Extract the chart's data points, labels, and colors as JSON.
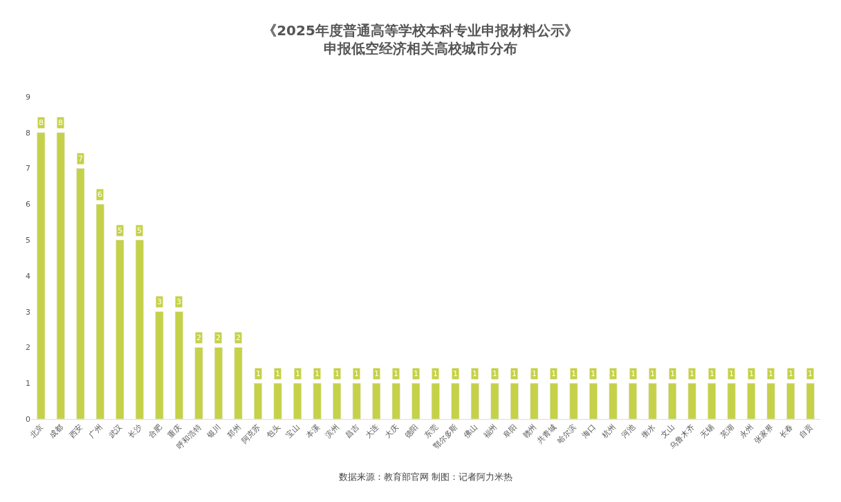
{
  "chart_data": {
    "type": "bar",
    "title": "《2025年度普通高等学校本科专业申报材料公示》",
    "subtitle": "申报低空经济相关高校城市分布",
    "categories": [
      "北京",
      "成都",
      "西安",
      "广州",
      "武汉",
      "长沙",
      "合肥",
      "重庆",
      "呼和浩特",
      "银川",
      "郑州",
      "阿克苏",
      "包头",
      "宝山",
      "本溪",
      "滨州",
      "昌吉",
      "大连",
      "大庆",
      "德阳",
      "东莞",
      "鄂尔多斯",
      "佛山",
      "福州",
      "阜阳",
      "赣州",
      "共青城",
      "哈尔滨",
      "海口",
      "杭州",
      "河池",
      "衡水",
      "文山",
      "乌鲁木齐",
      "无锡",
      "芜湖",
      "永州",
      "张家界",
      "长春",
      "自贡"
    ],
    "values": [
      8,
      8,
      7,
      6,
      5,
      5,
      3,
      3,
      2,
      2,
      2,
      1,
      1,
      1,
      1,
      1,
      1,
      1,
      1,
      1,
      1,
      1,
      1,
      1,
      1,
      1,
      1,
      1,
      1,
      1,
      1,
      1,
      1,
      1,
      1,
      1,
      1,
      1,
      1,
      1
    ],
    "color": "#c5d148",
    "ylim": [
      0,
      9
    ],
    "yticks": [
      0,
      1,
      2,
      3,
      4,
      5,
      6,
      7,
      8,
      9
    ],
    "legend": false,
    "data_labels": true,
    "annotations": [
      "数据来源：教育部官网 制图：记者阿力米热"
    ]
  }
}
